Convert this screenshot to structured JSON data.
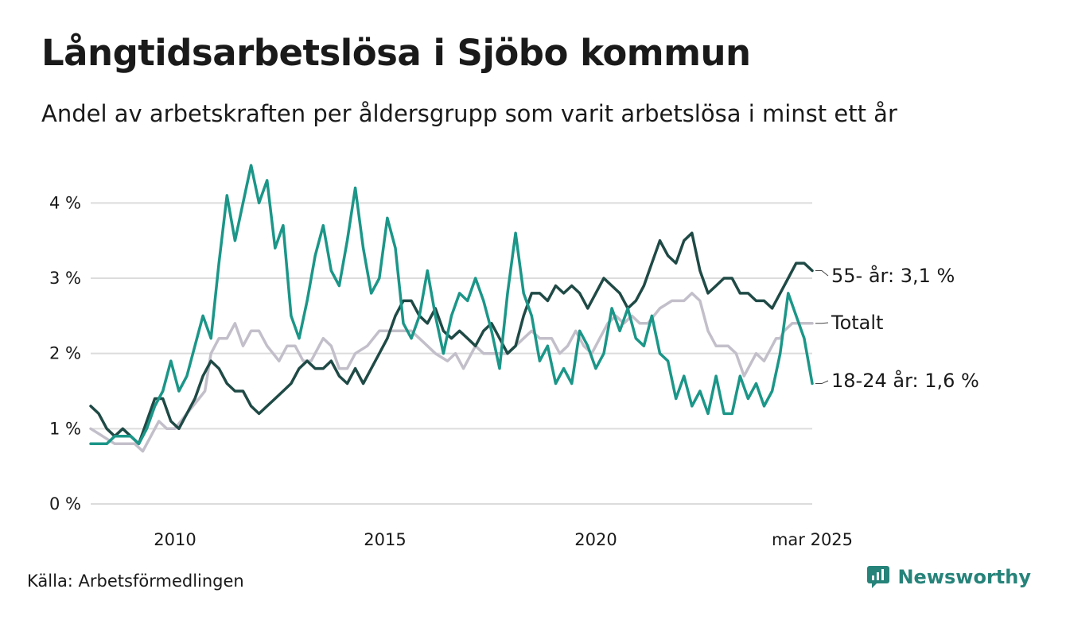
{
  "title": "Långtidsarbetslösa i Sjöbo kommun",
  "subtitle": "Andel av arbetskraften per åldersgrupp som varit arbetslösa i minst ett år",
  "source": "Källa: Arbetsförmedlingen",
  "brand": {
    "name": "Newsworthy",
    "icon": "newsworthy-logo-icon"
  },
  "colors": {
    "age55": "#1f4a46",
    "total": "#c3bfca",
    "age18_24": "#1b9688",
    "grid": "#dcdcdc",
    "brand": "#26837a"
  },
  "chart_data": {
    "type": "line",
    "title": "Långtidsarbetslösa i Sjöbo kommun",
    "ylim": [
      0,
      4.5
    ],
    "y_ticks": [
      {
        "value": 0,
        "label": "0 %"
      },
      {
        "value": 1,
        "label": "1 %"
      },
      {
        "value": 2,
        "label": "2 %"
      },
      {
        "value": 3,
        "label": "3 %"
      },
      {
        "value": 4,
        "label": "4 %"
      }
    ],
    "x_ticks": [
      {
        "value": 2010.0,
        "label": "2010"
      },
      {
        "value": 2015.0,
        "label": "2015"
      },
      {
        "value": 2020.0,
        "label": "2020"
      },
      {
        "value": 2025.17,
        "label": "mar 2025"
      }
    ],
    "xlim": [
      2008.0,
      2025.17
    ],
    "grid": true,
    "series": [
      {
        "name": "Totalt",
        "label": "Totalt",
        "color": "#c3bfca",
        "points": [
          [
            2008.0,
            1.0
          ],
          [
            2008.3,
            0.9
          ],
          [
            2008.6,
            0.8
          ],
          [
            2008.9,
            0.8
          ],
          [
            2009.1,
            0.8
          ],
          [
            2009.3,
            0.7
          ],
          [
            2009.5,
            0.9
          ],
          [
            2009.7,
            1.1
          ],
          [
            2009.9,
            1.0
          ],
          [
            2010.1,
            1.0
          ],
          [
            2010.4,
            1.2
          ],
          [
            2010.7,
            1.4
          ],
          [
            2010.85,
            1.5
          ],
          [
            2011.0,
            2.0
          ],
          [
            2011.2,
            2.2
          ],
          [
            2011.4,
            2.2
          ],
          [
            2011.6,
            2.4
          ],
          [
            2011.8,
            2.1
          ],
          [
            2012.0,
            2.3
          ],
          [
            2012.2,
            2.3
          ],
          [
            2012.4,
            2.1
          ],
          [
            2012.7,
            1.9
          ],
          [
            2012.9,
            2.1
          ],
          [
            2013.1,
            2.1
          ],
          [
            2013.3,
            1.9
          ],
          [
            2013.5,
            1.9
          ],
          [
            2013.8,
            2.2
          ],
          [
            2014.0,
            2.1
          ],
          [
            2014.2,
            1.8
          ],
          [
            2014.4,
            1.8
          ],
          [
            2014.6,
            2.0
          ],
          [
            2014.9,
            2.1
          ],
          [
            2015.2,
            2.3
          ],
          [
            2015.5,
            2.3
          ],
          [
            2015.8,
            2.3
          ],
          [
            2016.0,
            2.3
          ],
          [
            2016.2,
            2.2
          ],
          [
            2016.4,
            2.1
          ],
          [
            2016.6,
            2.0
          ],
          [
            2016.9,
            1.9
          ],
          [
            2017.1,
            2.0
          ],
          [
            2017.3,
            1.8
          ],
          [
            2017.6,
            2.1
          ],
          [
            2017.8,
            2.0
          ],
          [
            2018.1,
            2.0
          ],
          [
            2018.4,
            2.0
          ],
          [
            2018.6,
            2.1
          ],
          [
            2018.8,
            2.2
          ],
          [
            2019.0,
            2.3
          ],
          [
            2019.2,
            2.2
          ],
          [
            2019.5,
            2.2
          ],
          [
            2019.7,
            2.0
          ],
          [
            2019.9,
            2.1
          ],
          [
            2020.1,
            2.3
          ],
          [
            2020.3,
            2.1
          ],
          [
            2020.5,
            2.0
          ],
          [
            2020.7,
            2.2
          ],
          [
            2020.9,
            2.4
          ],
          [
            2021.1,
            2.5
          ],
          [
            2021.3,
            2.4
          ],
          [
            2021.5,
            2.5
          ],
          [
            2021.7,
            2.4
          ],
          [
            2021.9,
            2.4
          ],
          [
            2022.2,
            2.6
          ],
          [
            2022.5,
            2.7
          ],
          [
            2022.8,
            2.7
          ],
          [
            2023.0,
            2.8
          ],
          [
            2023.2,
            2.7
          ],
          [
            2023.4,
            2.3
          ],
          [
            2023.6,
            2.1
          ],
          [
            2023.9,
            2.1
          ],
          [
            2024.1,
            2.0
          ],
          [
            2024.3,
            1.7
          ],
          [
            2024.6,
            2.0
          ],
          [
            2024.8,
            1.9
          ],
          [
            2025.0,
            2.1
          ],
          [
            2025.1,
            2.2
          ],
          [
            2025.2,
            2.2
          ],
          [
            2025.3,
            2.3
          ],
          [
            2025.5,
            2.4
          ],
          [
            2025.7,
            2.4
          ],
          [
            2025.9,
            2.4
          ],
          [
            2026.0,
            2.4
          ]
        ]
      },
      {
        "name": "55- år",
        "label": "55- år: 3,1 %",
        "color": "#1f4a46",
        "points": [
          [
            2008.0,
            1.3
          ],
          [
            2008.2,
            1.2
          ],
          [
            2008.4,
            1.0
          ],
          [
            2008.6,
            0.9
          ],
          [
            2008.8,
            1.0
          ],
          [
            2009.0,
            0.9
          ],
          [
            2009.2,
            0.8
          ],
          [
            2009.4,
            1.1
          ],
          [
            2009.6,
            1.4
          ],
          [
            2009.8,
            1.4
          ],
          [
            2010.0,
            1.1
          ],
          [
            2010.2,
            1.0
          ],
          [
            2010.4,
            1.2
          ],
          [
            2010.6,
            1.4
          ],
          [
            2010.8,
            1.7
          ],
          [
            2011.0,
            1.9
          ],
          [
            2011.2,
            1.8
          ],
          [
            2011.4,
            1.6
          ],
          [
            2011.6,
            1.5
          ],
          [
            2011.8,
            1.5
          ],
          [
            2012.0,
            1.3
          ],
          [
            2012.2,
            1.2
          ],
          [
            2012.4,
            1.3
          ],
          [
            2012.6,
            1.4
          ],
          [
            2012.8,
            1.5
          ],
          [
            2013.0,
            1.6
          ],
          [
            2013.2,
            1.8
          ],
          [
            2013.4,
            1.9
          ],
          [
            2013.6,
            1.8
          ],
          [
            2013.8,
            1.8
          ],
          [
            2014.0,
            1.9
          ],
          [
            2014.2,
            1.7
          ],
          [
            2014.4,
            1.6
          ],
          [
            2014.6,
            1.8
          ],
          [
            2014.8,
            1.6
          ],
          [
            2015.0,
            1.8
          ],
          [
            2015.2,
            2.0
          ],
          [
            2015.4,
            2.2
          ],
          [
            2015.6,
            2.5
          ],
          [
            2015.8,
            2.7
          ],
          [
            2016.0,
            2.7
          ],
          [
            2016.2,
            2.5
          ],
          [
            2016.4,
            2.4
          ],
          [
            2016.6,
            2.6
          ],
          [
            2016.8,
            2.3
          ],
          [
            2017.0,
            2.2
          ],
          [
            2017.2,
            2.3
          ],
          [
            2017.4,
            2.2
          ],
          [
            2017.6,
            2.1
          ],
          [
            2017.8,
            2.3
          ],
          [
            2018.0,
            2.4
          ],
          [
            2018.2,
            2.2
          ],
          [
            2018.4,
            2.0
          ],
          [
            2018.6,
            2.1
          ],
          [
            2018.8,
            2.5
          ],
          [
            2019.0,
            2.8
          ],
          [
            2019.2,
            2.8
          ],
          [
            2019.4,
            2.7
          ],
          [
            2019.6,
            2.9
          ],
          [
            2019.8,
            2.8
          ],
          [
            2020.0,
            2.9
          ],
          [
            2020.2,
            2.8
          ],
          [
            2020.4,
            2.6
          ],
          [
            2020.6,
            2.8
          ],
          [
            2020.8,
            3.0
          ],
          [
            2021.0,
            2.9
          ],
          [
            2021.2,
            2.8
          ],
          [
            2021.4,
            2.6
          ],
          [
            2021.6,
            2.7
          ],
          [
            2021.8,
            2.9
          ],
          [
            2022.0,
            3.2
          ],
          [
            2022.2,
            3.5
          ],
          [
            2022.4,
            3.3
          ],
          [
            2022.6,
            3.2
          ],
          [
            2022.8,
            3.5
          ],
          [
            2023.0,
            3.6
          ],
          [
            2023.2,
            3.1
          ],
          [
            2023.4,
            2.8
          ],
          [
            2023.6,
            2.9
          ],
          [
            2023.8,
            3.0
          ],
          [
            2024.0,
            3.0
          ],
          [
            2024.2,
            2.8
          ],
          [
            2024.4,
            2.8
          ],
          [
            2024.6,
            2.7
          ],
          [
            2024.8,
            2.7
          ],
          [
            2025.0,
            2.6
          ],
          [
            2025.2,
            2.8
          ],
          [
            2025.4,
            3.0
          ],
          [
            2025.6,
            3.2
          ],
          [
            2025.8,
            3.2
          ],
          [
            2026.0,
            3.1
          ]
        ]
      },
      {
        "name": "18-24 år",
        "label": "18-24 år: 1,6 %",
        "color": "#1b9688",
        "points": [
          [
            2008.0,
            0.8
          ],
          [
            2008.2,
            0.8
          ],
          [
            2008.4,
            0.8
          ],
          [
            2008.6,
            0.9
          ],
          [
            2008.8,
            0.9
          ],
          [
            2009.0,
            0.9
          ],
          [
            2009.2,
            0.8
          ],
          [
            2009.4,
            1.0
          ],
          [
            2009.6,
            1.3
          ],
          [
            2009.8,
            1.5
          ],
          [
            2010.0,
            1.9
          ],
          [
            2010.2,
            1.5
          ],
          [
            2010.4,
            1.7
          ],
          [
            2010.6,
            2.1
          ],
          [
            2010.8,
            2.5
          ],
          [
            2011.0,
            2.2
          ],
          [
            2011.2,
            3.2
          ],
          [
            2011.4,
            4.1
          ],
          [
            2011.6,
            3.5
          ],
          [
            2011.8,
            4.0
          ],
          [
            2012.0,
            4.5
          ],
          [
            2012.2,
            4.0
          ],
          [
            2012.4,
            4.3
          ],
          [
            2012.6,
            3.4
          ],
          [
            2012.8,
            3.7
          ],
          [
            2013.0,
            2.5
          ],
          [
            2013.2,
            2.2
          ],
          [
            2013.4,
            2.7
          ],
          [
            2013.6,
            3.3
          ],
          [
            2013.8,
            3.7
          ],
          [
            2014.0,
            3.1
          ],
          [
            2014.2,
            2.9
          ],
          [
            2014.4,
            3.5
          ],
          [
            2014.6,
            4.2
          ],
          [
            2014.8,
            3.4
          ],
          [
            2015.0,
            2.8
          ],
          [
            2015.2,
            3.0
          ],
          [
            2015.4,
            3.8
          ],
          [
            2015.6,
            3.4
          ],
          [
            2015.8,
            2.4
          ],
          [
            2016.0,
            2.2
          ],
          [
            2016.2,
            2.5
          ],
          [
            2016.4,
            3.1
          ],
          [
            2016.6,
            2.5
          ],
          [
            2016.8,
            2.0
          ],
          [
            2017.0,
            2.5
          ],
          [
            2017.2,
            2.8
          ],
          [
            2017.4,
            2.7
          ],
          [
            2017.6,
            3.0
          ],
          [
            2017.8,
            2.7
          ],
          [
            2018.0,
            2.3
          ],
          [
            2018.2,
            1.8
          ],
          [
            2018.4,
            2.8
          ],
          [
            2018.6,
            3.6
          ],
          [
            2018.8,
            2.8
          ],
          [
            2019.0,
            2.5
          ],
          [
            2019.2,
            1.9
          ],
          [
            2019.4,
            2.1
          ],
          [
            2019.6,
            1.6
          ],
          [
            2019.8,
            1.8
          ],
          [
            2020.0,
            1.6
          ],
          [
            2020.2,
            2.3
          ],
          [
            2020.4,
            2.1
          ],
          [
            2020.6,
            1.8
          ],
          [
            2020.8,
            2.0
          ],
          [
            2021.0,
            2.6
          ],
          [
            2021.2,
            2.3
          ],
          [
            2021.4,
            2.6
          ],
          [
            2021.6,
            2.2
          ],
          [
            2021.8,
            2.1
          ],
          [
            2022.0,
            2.5
          ],
          [
            2022.2,
            2.0
          ],
          [
            2022.4,
            1.9
          ],
          [
            2022.6,
            1.4
          ],
          [
            2022.8,
            1.7
          ],
          [
            2023.0,
            1.3
          ],
          [
            2023.2,
            1.5
          ],
          [
            2023.4,
            1.2
          ],
          [
            2023.6,
            1.7
          ],
          [
            2023.8,
            1.2
          ],
          [
            2024.0,
            1.2
          ],
          [
            2024.2,
            1.7
          ],
          [
            2024.4,
            1.4
          ],
          [
            2024.6,
            1.6
          ],
          [
            2024.8,
            1.3
          ],
          [
            2025.0,
            1.5
          ],
          [
            2025.2,
            2.0
          ],
          [
            2025.4,
            2.8
          ],
          [
            2025.6,
            2.5
          ],
          [
            2025.8,
            2.2
          ],
          [
            2026.0,
            1.6
          ]
        ]
      }
    ]
  }
}
